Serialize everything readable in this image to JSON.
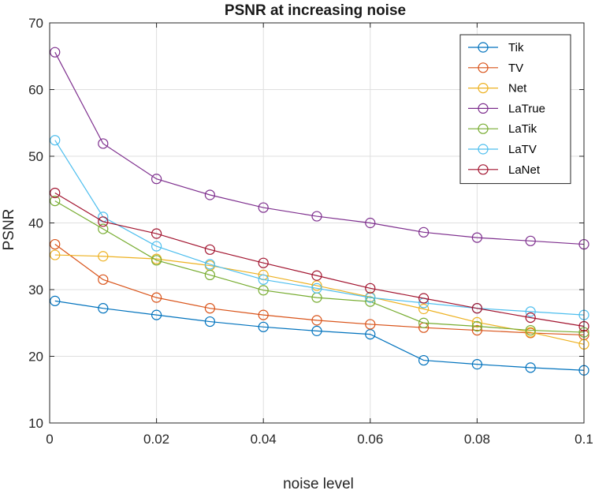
{
  "chart_data": {
    "type": "line",
    "title": "PSNR at increasing noise",
    "xlabel": "noise level",
    "ylabel": "PSNR",
    "xlim": [
      0,
      0.1
    ],
    "ylim": [
      10,
      70
    ],
    "xticks": [
      0,
      0.02,
      0.04,
      0.06,
      0.08,
      0.1
    ],
    "xtick_labels": [
      "0",
      "0.02",
      "0.04",
      "0.06",
      "0.08",
      "0.1"
    ],
    "yticks": [
      10,
      20,
      30,
      40,
      50,
      60,
      70
    ],
    "ytick_labels": [
      "10",
      "20",
      "30",
      "40",
      "50",
      "60",
      "70"
    ],
    "grid": true,
    "legend_position": "top-right",
    "marker": "circle",
    "x": [
      0.001,
      0.01,
      0.02,
      0.03,
      0.04,
      0.05,
      0.06,
      0.07,
      0.08,
      0.09,
      0.1
    ],
    "series": [
      {
        "name": "Tik",
        "color": "#0072BD",
        "values": [
          28.3,
          27.2,
          26.2,
          25.2,
          24.4,
          23.8,
          23.3,
          19.4,
          18.8,
          18.3,
          17.9
        ]
      },
      {
        "name": "TV",
        "color": "#D95319",
        "values": [
          36.8,
          31.5,
          28.8,
          27.2,
          26.2,
          25.4,
          24.8,
          24.3,
          23.9,
          23.5,
          23.2
        ]
      },
      {
        "name": "Net",
        "color": "#EDB120",
        "values": [
          35.2,
          35.0,
          34.6,
          33.6,
          32.2,
          30.6,
          28.9,
          27.1,
          25.1,
          23.6,
          21.8
        ]
      },
      {
        "name": "LaTrue",
        "color": "#7E2F8E",
        "values": [
          65.6,
          51.9,
          46.6,
          44.2,
          42.3,
          41.0,
          40.0,
          38.6,
          37.8,
          37.3,
          36.8
        ]
      },
      {
        "name": "LaTik",
        "color": "#77AC30",
        "values": [
          43.3,
          39.1,
          34.4,
          32.2,
          29.9,
          28.8,
          28.2,
          25.0,
          24.5,
          23.9,
          23.6
        ]
      },
      {
        "name": "LaTV",
        "color": "#4DBEEE",
        "values": [
          52.4,
          40.9,
          36.5,
          33.8,
          31.5,
          30.2,
          28.8,
          28.0,
          27.2,
          26.7,
          26.2
        ]
      },
      {
        "name": "LaNet",
        "color": "#A2142F",
        "values": [
          44.5,
          40.2,
          38.4,
          36.0,
          34.0,
          32.1,
          30.2,
          28.7,
          27.2,
          25.8,
          24.5
        ]
      }
    ]
  }
}
